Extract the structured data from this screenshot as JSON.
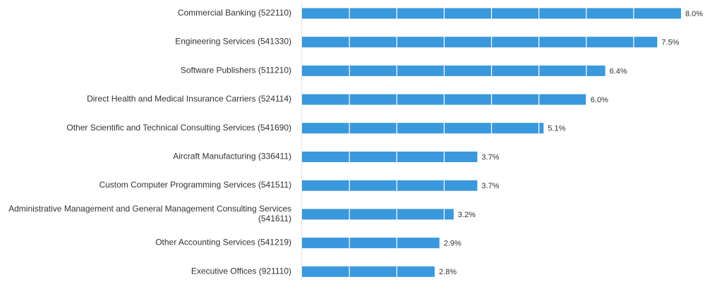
{
  "chart_data": {
    "type": "bar",
    "orientation": "horizontal",
    "categories": [
      [
        "Commercial Banking (522110)"
      ],
      [
        "Engineering Services (541330)"
      ],
      [
        "Software Publishers (511210)"
      ],
      [
        "Direct Health and Medical Insurance Carriers (524114)"
      ],
      [
        "Other Scientific and Technical Consulting Services (541690)"
      ],
      [
        "Aircraft Manufacturing (336411)"
      ],
      [
        "Custom Computer Programming Services (541511)"
      ],
      [
        "Administrative Management and General Management Consulting Services",
        "(541611)"
      ],
      [
        "Other Accounting Services (541219)"
      ],
      [
        "Executive Offices (921110)"
      ]
    ],
    "values": [
      8.0,
      7.5,
      6.4,
      6.0,
      5.1,
      3.7,
      3.7,
      3.2,
      2.9,
      2.8
    ],
    "value_labels": [
      "8.0%",
      "7.5%",
      "6.4%",
      "6.0%",
      "5.1%",
      "3.7%",
      "3.7%",
      "3.2%",
      "2.9%",
      "2.8%"
    ],
    "xlim": [
      0,
      8.0
    ],
    "grid": true,
    "legend": "none",
    "bar_color": "#3a98dc",
    "grid_color": "#ffffff",
    "axis_color": "#e3e3e3"
  }
}
